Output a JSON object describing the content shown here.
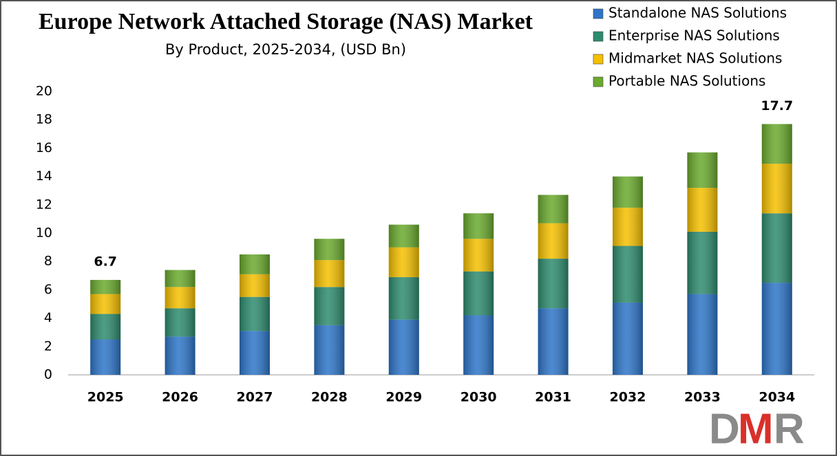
{
  "chart_data": {
    "type": "stacked_bar",
    "title": "Europe Network Attached Storage (NAS) Market",
    "subtitle": "By Product, 2025-2034, (USD Bn)",
    "categories": [
      "2025",
      "2026",
      "2027",
      "2028",
      "2029",
      "2030",
      "2031",
      "2032",
      "2033",
      "2034"
    ],
    "series": [
      {
        "name": "Standalone NAS Solutions",
        "color": "#2e75c8",
        "values": [
          2.5,
          2.7,
          3.1,
          3.5,
          3.9,
          4.2,
          4.7,
          5.1,
          5.7,
          6.5
        ]
      },
      {
        "name": "Enterprise NAS Solutions",
        "color": "#2e8b6e",
        "values": [
          1.8,
          2.0,
          2.4,
          2.7,
          3.0,
          3.1,
          3.5,
          4.0,
          4.4,
          4.9
        ]
      },
      {
        "name": "Midmarket NAS Solutions",
        "color": "#f5c000",
        "values": [
          1.4,
          1.5,
          1.6,
          1.9,
          2.1,
          2.3,
          2.5,
          2.7,
          3.1,
          3.5
        ]
      },
      {
        "name": "Portable NAS Solutions",
        "color": "#6aaa2e",
        "values": [
          1.0,
          1.2,
          1.4,
          1.5,
          1.6,
          1.8,
          2.0,
          2.2,
          2.5,
          2.8
        ]
      }
    ],
    "total_labels": [
      "6.7",
      null,
      null,
      null,
      null,
      null,
      null,
      null,
      null,
      "17.7"
    ],
    "ylim": [
      0,
      20
    ],
    "yticks": [
      0,
      2,
      4,
      6,
      8,
      10,
      12,
      14,
      16,
      18,
      20
    ],
    "grid": false,
    "legend": "top-right"
  },
  "logo": {
    "d": "D",
    "m": "M",
    "r": "R"
  }
}
